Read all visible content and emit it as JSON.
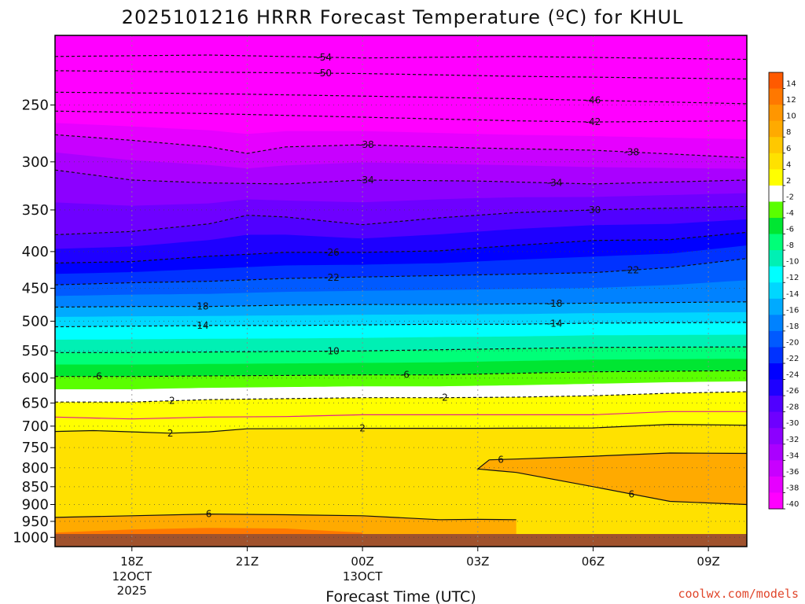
{
  "chart_data": {
    "type": "heatmap",
    "title": "2025101216 HRRR Forecast Temperature (ºC) for KHUL",
    "xlabel": "Forecast Time (UTC)",
    "ylabel": "",
    "y_scale": "log-pressure",
    "y_ticks": [
      250,
      300,
      350,
      400,
      450,
      500,
      550,
      600,
      650,
      700,
      750,
      800,
      850,
      900,
      950,
      1000
    ],
    "x_ticks": [
      {
        "label": "18Z",
        "sub1": "12OCT",
        "sub2": "2025",
        "hour": 18
      },
      {
        "label": "21Z",
        "sub1": "",
        "sub2": "",
        "hour": 21
      },
      {
        "label": "00Z",
        "sub1": "13OCT",
        "sub2": "",
        "hour": 24
      },
      {
        "label": "03Z",
        "sub1": "",
        "sub2": "",
        "hour": 27
      },
      {
        "label": "06Z",
        "sub1": "",
        "sub2": "",
        "hour": 30
      },
      {
        "label": "09Z",
        "sub1": "",
        "sub2": "",
        "hour": 33
      }
    ],
    "xlim_hours": [
      16,
      34
    ],
    "ylim_hpa": [
      1030,
      200
    ],
    "grid": true,
    "colorbar": {
      "placement": "right",
      "labels": [
        "14",
        "12",
        "10",
        "8",
        "6",
        "4",
        "2",
        "-2",
        "-4",
        "-6",
        "-8",
        "-10",
        "-12",
        "-14",
        "-16",
        "-18",
        "-20",
        "-22",
        "-24",
        "-26",
        "-28",
        "-30",
        "-32",
        "-34",
        "-36",
        "-38",
        "-40"
      ],
      "colors": [
        "#ff5a00",
        "#ff7800",
        "#ff9600",
        "#ffaa00",
        "#ffc800",
        "#ffe100",
        "#ffff00",
        "#ffffff",
        "#5aff00",
        "#00e632",
        "#00ff78",
        "#00f0b4",
        "#00ffff",
        "#00d7ff",
        "#00aaff",
        "#0082ff",
        "#005aff",
        "#0032ff",
        "#0000ff",
        "#1e00ff",
        "#5000ff",
        "#6e00ff",
        "#8c00ff",
        "#aa00ff",
        "#c800ff",
        "#e600ff",
        "#ff00ff"
      ]
    },
    "isotherms": [
      {
        "t": -54,
        "points": [
          [
            16,
            214
          ],
          [
            20,
            213
          ],
          [
            24,
            215
          ],
          [
            28,
            214
          ],
          [
            34,
            216
          ]
        ],
        "labels": [
          {
            "h": 23.0,
            "text": "-54"
          }
        ]
      },
      {
        "t": -50,
        "points": [
          [
            16,
            224
          ],
          [
            20,
            225
          ],
          [
            24,
            226
          ],
          [
            28,
            228
          ],
          [
            34,
            230
          ]
        ],
        "labels": [
          {
            "h": 23.0,
            "text": "-50"
          }
        ]
      },
      {
        "t": -46,
        "points": [
          [
            16,
            240
          ],
          [
            20,
            241
          ],
          [
            24,
            243
          ],
          [
            28,
            245
          ],
          [
            34,
            249
          ]
        ],
        "labels": [
          {
            "h": 30.0,
            "text": "-46"
          }
        ]
      },
      {
        "t": -42,
        "points": [
          [
            16,
            255
          ],
          [
            20,
            257
          ],
          [
            24,
            260
          ],
          [
            28,
            263
          ],
          [
            30,
            264
          ],
          [
            34,
            263
          ]
        ],
        "labels": [
          {
            "h": 30.0,
            "text": "-42"
          }
        ]
      },
      {
        "t": -38,
        "points": [
          [
            16,
            275
          ],
          [
            18,
            280
          ],
          [
            20,
            286
          ],
          [
            21,
            292
          ],
          [
            22,
            286
          ],
          [
            24,
            284
          ],
          [
            27,
            287
          ],
          [
            30,
            289
          ],
          [
            34,
            296
          ]
        ],
        "labels": [
          {
            "h": 24.1,
            "text": "-38"
          },
          {
            "h": 31.0,
            "text": "-38"
          }
        ]
      },
      {
        "t": -34,
        "points": [
          [
            16,
            308
          ],
          [
            18,
            318
          ],
          [
            20,
            321
          ],
          [
            22,
            322
          ],
          [
            24,
            318
          ],
          [
            27,
            319
          ],
          [
            30,
            322
          ],
          [
            34,
            318
          ]
        ],
        "labels": [
          {
            "h": 24.1,
            "text": "-34"
          },
          {
            "h": 29.0,
            "text": "-34"
          }
        ]
      },
      {
        "t": -30,
        "points": [
          [
            16,
            379
          ],
          [
            18,
            375
          ],
          [
            20,
            366
          ],
          [
            21,
            356
          ],
          [
            22,
            358
          ],
          [
            24,
            367
          ],
          [
            26,
            359
          ],
          [
            28,
            353
          ],
          [
            30,
            350
          ],
          [
            34,
            346
          ]
        ],
        "labels": [
          {
            "h": 30.0,
            "text": "-30"
          }
        ]
      },
      {
        "t": -26,
        "points": [
          [
            16,
            415
          ],
          [
            18,
            413
          ],
          [
            20,
            406
          ],
          [
            22,
            401
          ],
          [
            24,
            401
          ],
          [
            26,
            399
          ],
          [
            28,
            392
          ],
          [
            30,
            386
          ],
          [
            32,
            385
          ],
          [
            34,
            376
          ]
        ],
        "labels": [
          {
            "h": 23.2,
            "text": "-26"
          }
        ]
      },
      {
        "t": -22,
        "points": [
          [
            16,
            445
          ],
          [
            18,
            442
          ],
          [
            20,
            440
          ],
          [
            22,
            436
          ],
          [
            24,
            434
          ],
          [
            26,
            432
          ],
          [
            28,
            430
          ],
          [
            30,
            428
          ],
          [
            32,
            421
          ],
          [
            34,
            409
          ]
        ],
        "labels": [
          {
            "h": 23.2,
            "text": "-22"
          },
          {
            "h": 31.0,
            "text": "-22"
          }
        ]
      },
      {
        "t": -18,
        "points": [
          [
            16,
            478
          ],
          [
            18,
            477
          ],
          [
            20,
            477
          ],
          [
            22,
            475
          ],
          [
            24,
            474
          ],
          [
            26,
            474
          ],
          [
            28,
            473
          ],
          [
            30,
            472
          ],
          [
            34,
            470
          ]
        ],
        "labels": [
          {
            "h": 19.8,
            "text": "-18"
          },
          {
            "h": 29.0,
            "text": "-18"
          }
        ]
      },
      {
        "t": -14,
        "points": [
          [
            16,
            509
          ],
          [
            18,
            508
          ],
          [
            20,
            507
          ],
          [
            22,
            507
          ],
          [
            24,
            506
          ],
          [
            26,
            505
          ],
          [
            28,
            505
          ],
          [
            30,
            503
          ],
          [
            34,
            502
          ]
        ],
        "labels": [
          {
            "h": 19.8,
            "text": "-14"
          },
          {
            "h": 29.0,
            "text": "-14"
          }
        ]
      },
      {
        "t": -10,
        "points": [
          [
            16,
            553
          ],
          [
            18,
            553
          ],
          [
            20,
            552
          ],
          [
            22,
            551
          ],
          [
            24,
            550
          ],
          [
            26,
            548
          ],
          [
            28,
            546
          ],
          [
            30,
            544
          ],
          [
            34,
            543
          ]
        ],
        "labels": [
          {
            "h": 23.2,
            "text": "-10"
          }
        ]
      },
      {
        "t": -6,
        "points": [
          [
            16,
            597
          ],
          [
            18,
            597
          ],
          [
            20,
            596
          ],
          [
            22,
            595
          ],
          [
            24,
            594
          ],
          [
            26,
            594
          ],
          [
            28,
            591
          ],
          [
            30,
            588
          ],
          [
            34,
            586
          ]
        ],
        "labels": [
          {
            "h": 17.1,
            "text": "-6"
          },
          {
            "h": 25.1,
            "text": "-6"
          }
        ]
      },
      {
        "t": -2,
        "points": [
          [
            16,
            648
          ],
          [
            18,
            648
          ],
          [
            20,
            643
          ],
          [
            22,
            641
          ],
          [
            24,
            639
          ],
          [
            26,
            639
          ],
          [
            28,
            638
          ],
          [
            30,
            635
          ],
          [
            32,
            630
          ],
          [
            34,
            627
          ]
        ],
        "labels": [
          {
            "h": 19.0,
            "text": "-2"
          },
          {
            "h": 26.1,
            "text": "-2"
          }
        ]
      },
      {
        "t": 0,
        "points": [
          [
            16,
            680
          ],
          [
            18,
            684
          ],
          [
            20,
            680
          ],
          [
            22,
            679
          ],
          [
            24,
            675
          ],
          [
            26,
            675
          ],
          [
            28,
            675
          ],
          [
            30,
            675
          ],
          [
            32,
            668
          ],
          [
            34,
            668
          ]
        ],
        "labels": []
      },
      {
        "t": 2,
        "points": [
          [
            16,
            712
          ],
          [
            17,
            710
          ],
          [
            18,
            713
          ],
          [
            19,
            716
          ],
          [
            20,
            713
          ],
          [
            21,
            706
          ],
          [
            24,
            705
          ],
          [
            27,
            705
          ],
          [
            30,
            704
          ],
          [
            32,
            696
          ],
          [
            34,
            698
          ]
        ],
        "labels": [
          {
            "h": 19.0,
            "text": "2"
          },
          {
            "h": 24.0,
            "text": "2"
          }
        ]
      },
      {
        "t": 6,
        "points": [
          [
            16,
            938
          ],
          [
            18,
            933
          ],
          [
            20,
            928
          ],
          [
            22,
            930
          ],
          [
            24,
            933
          ],
          [
            26,
            945
          ],
          [
            27,
            944
          ],
          [
            28,
            945
          ]
        ],
        "labels": [
          {
            "h": 20.0,
            "text": "6"
          }
        ]
      },
      {
        "t": 6,
        "points": [
          [
            27.3,
            780
          ],
          [
            28,
            778
          ],
          [
            30,
            771
          ],
          [
            32,
            763
          ],
          [
            34,
            764
          ]
        ],
        "labels": [
          {
            "h": 27.6,
            "text": "6"
          }
        ]
      },
      {
        "t": 6,
        "points": [
          [
            27.3,
            780
          ],
          [
            27,
            803
          ],
          [
            28,
            812
          ],
          [
            30,
            850
          ],
          [
            32,
            891
          ],
          [
            34,
            900
          ]
        ],
        "labels": [
          {
            "h": 31.0,
            "text": "6"
          }
        ]
      }
    ]
  },
  "credit": "coolwx.com/models"
}
